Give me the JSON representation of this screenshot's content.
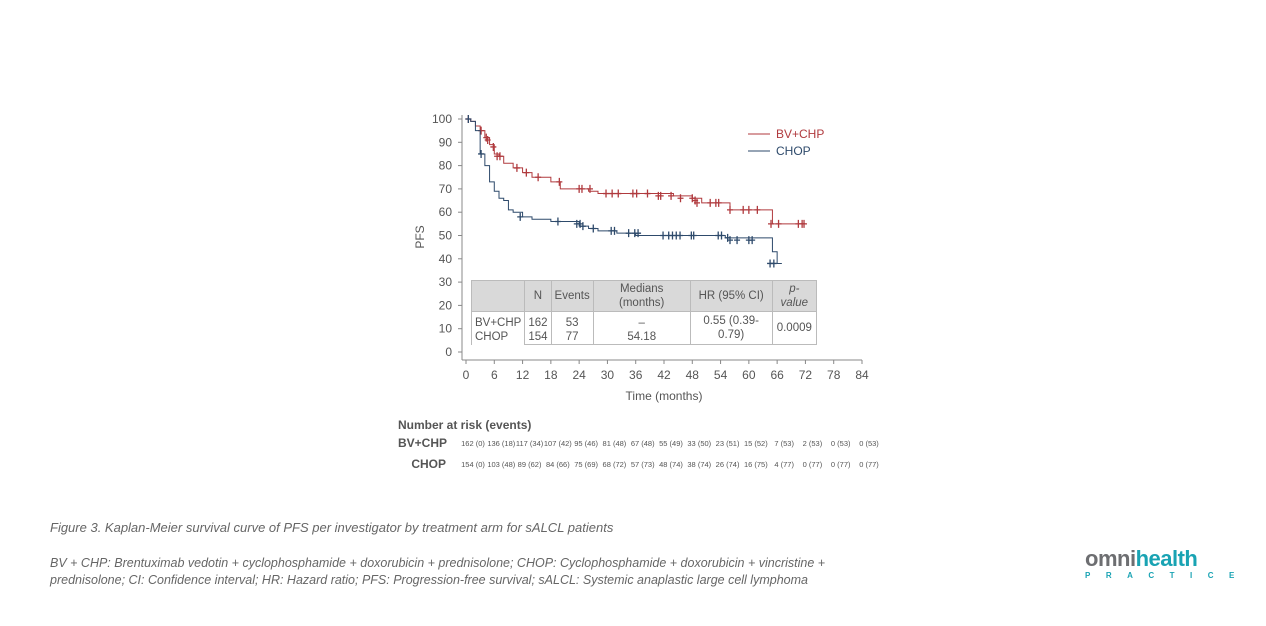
{
  "chart_data": {
    "type": "line",
    "subtype": "kaplan-meier",
    "xlabel": "Time (months)",
    "ylabel": "PFS",
    "xlim": [
      0,
      84
    ],
    "ylim": [
      0,
      100
    ],
    "xticks": [
      0,
      6,
      12,
      18,
      24,
      30,
      36,
      42,
      48,
      54,
      60,
      66,
      72,
      78,
      84
    ],
    "yticks": [
      0,
      10,
      20,
      30,
      40,
      50,
      60,
      70,
      80,
      90,
      100
    ],
    "legend_position": "top-right",
    "series": [
      {
        "name": "BV+CHP",
        "color": "#b03a3e",
        "x": [
          0,
          1,
          2,
          3,
          4,
          5,
          6,
          7,
          8,
          10,
          12,
          14,
          18,
          20,
          26,
          28,
          44,
          48,
          50,
          56,
          65,
          72
        ],
        "y": [
          100,
          99,
          97,
          95,
          92,
          89,
          85,
          84,
          81,
          79,
          77,
          75,
          73,
          70,
          69,
          68,
          67,
          66,
          64,
          61,
          55,
          55
        ],
        "censored": [
          [
            0.5,
            100
          ],
          [
            3.2,
            95
          ],
          [
            4.3,
            92
          ],
          [
            4.6,
            91
          ],
          [
            5.8,
            88
          ],
          [
            6.6,
            84
          ],
          [
            7.2,
            84
          ],
          [
            10.8,
            79
          ],
          [
            12.8,
            77
          ],
          [
            15.3,
            75
          ],
          [
            19.8,
            73
          ],
          [
            24,
            70
          ],
          [
            24.6,
            70
          ],
          [
            26.3,
            70
          ],
          [
            29.7,
            68
          ],
          [
            31,
            68
          ],
          [
            32.3,
            68
          ],
          [
            35.4,
            68
          ],
          [
            36.2,
            68
          ],
          [
            38.5,
            68
          ],
          [
            40.8,
            67
          ],
          [
            41.3,
            67
          ],
          [
            43.5,
            67
          ],
          [
            45.5,
            66
          ],
          [
            48,
            66
          ],
          [
            48.6,
            65
          ],
          [
            49,
            64
          ],
          [
            51.8,
            64
          ],
          [
            53,
            64
          ],
          [
            53.6,
            64
          ],
          [
            56,
            61
          ],
          [
            58.8,
            61
          ],
          [
            60,
            61
          ],
          [
            61.8,
            61
          ],
          [
            64.7,
            55
          ],
          [
            66.3,
            55
          ],
          [
            70.5,
            55
          ],
          [
            71.3,
            55
          ],
          [
            71.7,
            55
          ]
        ]
      },
      {
        "name": "CHOP",
        "color": "#2e4a6b",
        "x": [
          0,
          1,
          2,
          3,
          4,
          5,
          6,
          7,
          8,
          9,
          10,
          12,
          14,
          18,
          24,
          26,
          28,
          32,
          36,
          55,
          65,
          66,
          67
        ],
        "y": [
          100,
          99,
          95,
          85,
          80,
          73,
          69,
          66,
          65,
          61,
          60,
          58,
          57,
          56,
          54,
          53,
          52,
          51,
          50,
          49,
          43,
          38,
          38
        ],
        "censored": [
          [
            0.5,
            100
          ],
          [
            3.2,
            85
          ],
          [
            11.5,
            58
          ],
          [
            19.5,
            56
          ],
          [
            23.5,
            55
          ],
          [
            24.2,
            55
          ],
          [
            24.8,
            54
          ],
          [
            27,
            53
          ],
          [
            30.8,
            52
          ],
          [
            31.5,
            52
          ],
          [
            34.5,
            51
          ],
          [
            35.8,
            51
          ],
          [
            36.5,
            51
          ],
          [
            41.8,
            50
          ],
          [
            43,
            50
          ],
          [
            43.8,
            50
          ],
          [
            44.6,
            50
          ],
          [
            45.4,
            50
          ],
          [
            47.8,
            50
          ],
          [
            48.3,
            50
          ],
          [
            53.5,
            50
          ],
          [
            54.2,
            50
          ],
          [
            55.5,
            49
          ],
          [
            56,
            48
          ],
          [
            57.5,
            48
          ],
          [
            60,
            48
          ],
          [
            60.7,
            48
          ],
          [
            64.5,
            38
          ],
          [
            65.3,
            38
          ]
        ]
      }
    ],
    "summary_table": {
      "headers": [
        "",
        "N",
        "Events",
        "Medians (months)",
        "HR (95% CI)",
        "p-value"
      ],
      "rows": [
        {
          "arm": "BV+CHP",
          "n": "162",
          "events": "53",
          "median": "–"
        },
        {
          "arm": "CHOP",
          "n": "154",
          "events": "77",
          "median": "54.18"
        }
      ],
      "hr": "0.55 (0.39-0.79)",
      "p": "0.0009"
    },
    "risk_table": {
      "title": "Number at risk (events)",
      "rows": [
        {
          "arm": "BV+CHP",
          "values": [
            "162 (0)",
            "136 (18)",
            "117 (34)",
            "107 (42)",
            "95 (46)",
            "81 (48)",
            "67 (48)",
            "55 (49)",
            "33 (50)",
            "23 (51)",
            "15 (52)",
            "7 (53)",
            "2 (53)",
            "0 (53)",
            "0 (53)"
          ]
        },
        {
          "arm": "CHOP",
          "values": [
            "154 (0)",
            "103 (48)",
            "89 (62)",
            "84 (66)",
            "75 (69)",
            "68 (72)",
            "57 (73)",
            "48 (74)",
            "38 (74)",
            "26 (74)",
            "16 (75)",
            "4 (77)",
            "0 (77)",
            "0 (77)",
            "0 (77)"
          ]
        }
      ]
    }
  },
  "caption": {
    "figure": "Figure 3. Kaplan-Meier survival curve of PFS per investigator by treatment arm for sALCL patients",
    "abbrev_line1": "BV + CHP: Brentuximab vedotin + cyclophosphamide + doxorubicin + prednisolone; CHOP: Cyclophosphamide + doxorubicin + vincristine +",
    "abbrev_line2": "prednisolone; CI: Confidence interval; HR: Hazard ratio; PFS: Progression-free survival; sALCL: Systemic anaplastic large cell lymphoma"
  },
  "logo": {
    "part1": "omni",
    "part2": "health",
    "sub": "PRACTICE",
    "color_grey": "#6d6e71",
    "color_teal": "#19a3b3"
  }
}
